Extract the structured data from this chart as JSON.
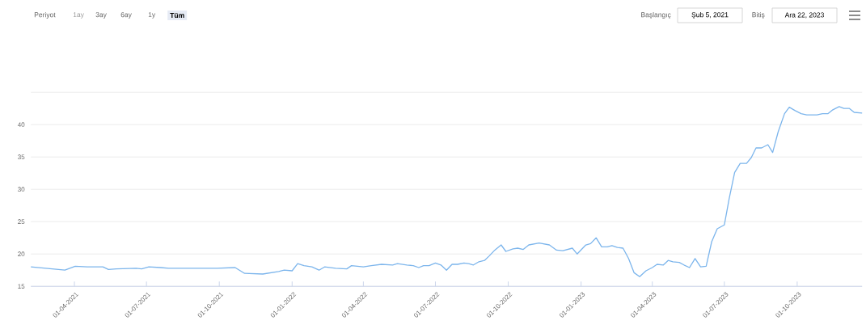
{
  "chart_data": {
    "type": "line",
    "annotations": [
      "Periyot",
      "1ay",
      "3ay",
      "6ay",
      "1y",
      "Tüm",
      "Başlangıç",
      "Şub 5, 2021",
      "Bitiş",
      "Ara 22, 2023"
    ],
    "x": [
      "2021-02-05",
      "2021-03-20",
      "2021-04-02",
      "2021-04-17",
      "2021-05-07",
      "2021-05-14",
      "2021-05-24",
      "2021-06-18",
      "2021-06-25",
      "2021-07-04",
      "2021-07-19",
      "2021-07-29",
      "2021-08-28",
      "2021-09-28",
      "2021-10-21",
      "2021-11-02",
      "2021-11-25",
      "2021-12-15",
      "2021-12-22",
      "2022-01-01",
      "2022-01-08",
      "2022-01-16",
      "2022-01-26",
      "2022-02-04",
      "2022-02-11",
      "2022-02-25",
      "2022-03-11",
      "2022-03-17",
      "2022-04-01",
      "2022-04-11",
      "2022-04-24",
      "2022-05-08",
      "2022-05-14",
      "2022-05-26",
      "2022-06-03",
      "2022-06-10",
      "2022-06-16",
      "2022-06-23",
      "2022-07-01",
      "2022-07-08",
      "2022-07-15",
      "2022-07-22",
      "2022-07-29",
      "2022-08-06",
      "2022-08-12",
      "2022-08-18",
      "2022-08-25",
      "2022-09-01",
      "2022-09-07",
      "2022-09-14",
      "2022-09-22",
      "2022-09-28",
      "2022-10-07",
      "2022-10-13",
      "2022-10-20",
      "2022-10-27",
      "2022-11-09",
      "2022-11-22",
      "2022-12-01",
      "2022-12-09",
      "2022-12-21",
      "2022-12-27",
      "2023-01-07",
      "2023-01-13",
      "2023-01-20",
      "2023-01-27",
      "2023-02-03",
      "2023-02-09",
      "2023-02-16",
      "2023-02-23",
      "2023-03-02",
      "2023-03-09",
      "2023-03-16",
      "2023-03-24",
      "2023-04-01",
      "2023-04-07",
      "2023-04-15",
      "2023-04-21",
      "2023-04-27",
      "2023-05-05",
      "2023-05-11",
      "2023-05-18",
      "2023-05-25",
      "2023-06-01",
      "2023-06-08",
      "2023-06-15",
      "2023-06-22",
      "2023-07-01",
      "2023-07-07",
      "2023-07-14",
      "2023-07-21",
      "2023-07-29",
      "2023-08-04",
      "2023-08-10",
      "2023-08-17",
      "2023-08-25",
      "2023-08-31",
      "2023-09-07",
      "2023-09-15",
      "2023-09-21",
      "2023-09-28",
      "2023-10-06",
      "2023-10-13",
      "2023-10-26",
      "2023-11-02",
      "2023-11-09",
      "2023-11-15",
      "2023-11-23",
      "2023-11-29",
      "2023-12-06",
      "2023-12-12",
      "2023-12-22"
    ],
    "series": [
      {
        "color": "#7cb5ec",
        "values": [
          18.0,
          17.5,
          18.1,
          18.0,
          18.0,
          17.6,
          17.7,
          17.8,
          17.7,
          18.0,
          17.9,
          17.8,
          17.8,
          17.8,
          17.9,
          17.0,
          16.9,
          17.3,
          17.5,
          17.4,
          18.5,
          18.2,
          18.0,
          17.5,
          18.0,
          17.8,
          17.7,
          18.2,
          18.0,
          18.2,
          18.4,
          18.3,
          18.5,
          18.3,
          18.2,
          17.9,
          18.2,
          18.2,
          18.6,
          18.3,
          17.5,
          18.4,
          18.4,
          18.6,
          18.5,
          18.3,
          18.8,
          19.0,
          19.7,
          20.6,
          21.4,
          20.4,
          20.8,
          20.9,
          20.7,
          21.4,
          21.7,
          21.4,
          20.6,
          20.5,
          20.9,
          20.0,
          21.4,
          21.6,
          22.5,
          21.1,
          21.1,
          21.3,
          21.0,
          20.9,
          19.3,
          17.1,
          16.5,
          17.4,
          17.9,
          18.4,
          18.3,
          19.0,
          18.8,
          18.7,
          18.3,
          17.9,
          19.3,
          18.0,
          18.1,
          21.9,
          23.9,
          24.5,
          28.5,
          32.6,
          34.0,
          34.0,
          34.9,
          36.4,
          36.4,
          36.9,
          35.7,
          38.9,
          41.7,
          42.7,
          42.2,
          41.7,
          41.5,
          41.5,
          41.7,
          41.7,
          42.3,
          42.8,
          42.5,
          42.5,
          41.9,
          41.8
        ]
      }
    ],
    "xlim": [
      "2021-02-05",
      "2023-12-22"
    ],
    "xticks": [
      {
        "value": "2021-04-01",
        "label": "01-04-2021"
      },
      {
        "value": "2021-07-01",
        "label": "01-07-2021"
      },
      {
        "value": "2021-10-01",
        "label": "01-10-2021"
      },
      {
        "value": "2022-01-01",
        "label": "01-01-2022"
      },
      {
        "value": "2022-04-01",
        "label": "01-04-2022"
      },
      {
        "value": "2022-07-01",
        "label": "01-07-2022"
      },
      {
        "value": "2022-10-01",
        "label": "01-10-2022"
      },
      {
        "value": "2023-01-01",
        "label": "01-01-2023"
      },
      {
        "value": "2023-04-01",
        "label": "01-04-2023"
      },
      {
        "value": "2023-07-01",
        "label": "01-07-2023"
      },
      {
        "value": "2023-10-01",
        "label": "01-10-2023"
      }
    ],
    "ylim": [
      15,
      45
    ],
    "yticks": [
      15,
      20,
      25,
      30,
      35,
      40,
      {
        "value": 45,
        "label": null
      }
    ],
    "grid": "y",
    "marker": "none",
    "line_style": "solid"
  }
}
